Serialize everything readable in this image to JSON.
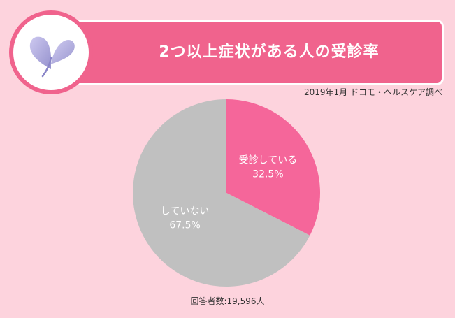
{
  "header": {
    "title": "2つ以上症状がある人の受診率"
  },
  "source": "2019年1月 ドコモ・ヘルスケア調べ",
  "footer": {
    "respondents": "回答者数:19,596人"
  },
  "colors": {
    "background": "#fdd3dd",
    "accent": "#f0638d",
    "slice_yes": "#f5669a",
    "slice_no": "#c0c0c0"
  },
  "chart_data": {
    "type": "pie",
    "title": "2つ以上症状がある人の受診率",
    "slices": [
      {
        "label": "受診している",
        "value": 32.5,
        "display": "32.5%",
        "color": "#f5669a"
      },
      {
        "label": "していない",
        "value": 67.5,
        "display": "67.5%",
        "color": "#c0c0c0"
      }
    ],
    "start": "12 o'clock",
    "direction": "clockwise"
  }
}
